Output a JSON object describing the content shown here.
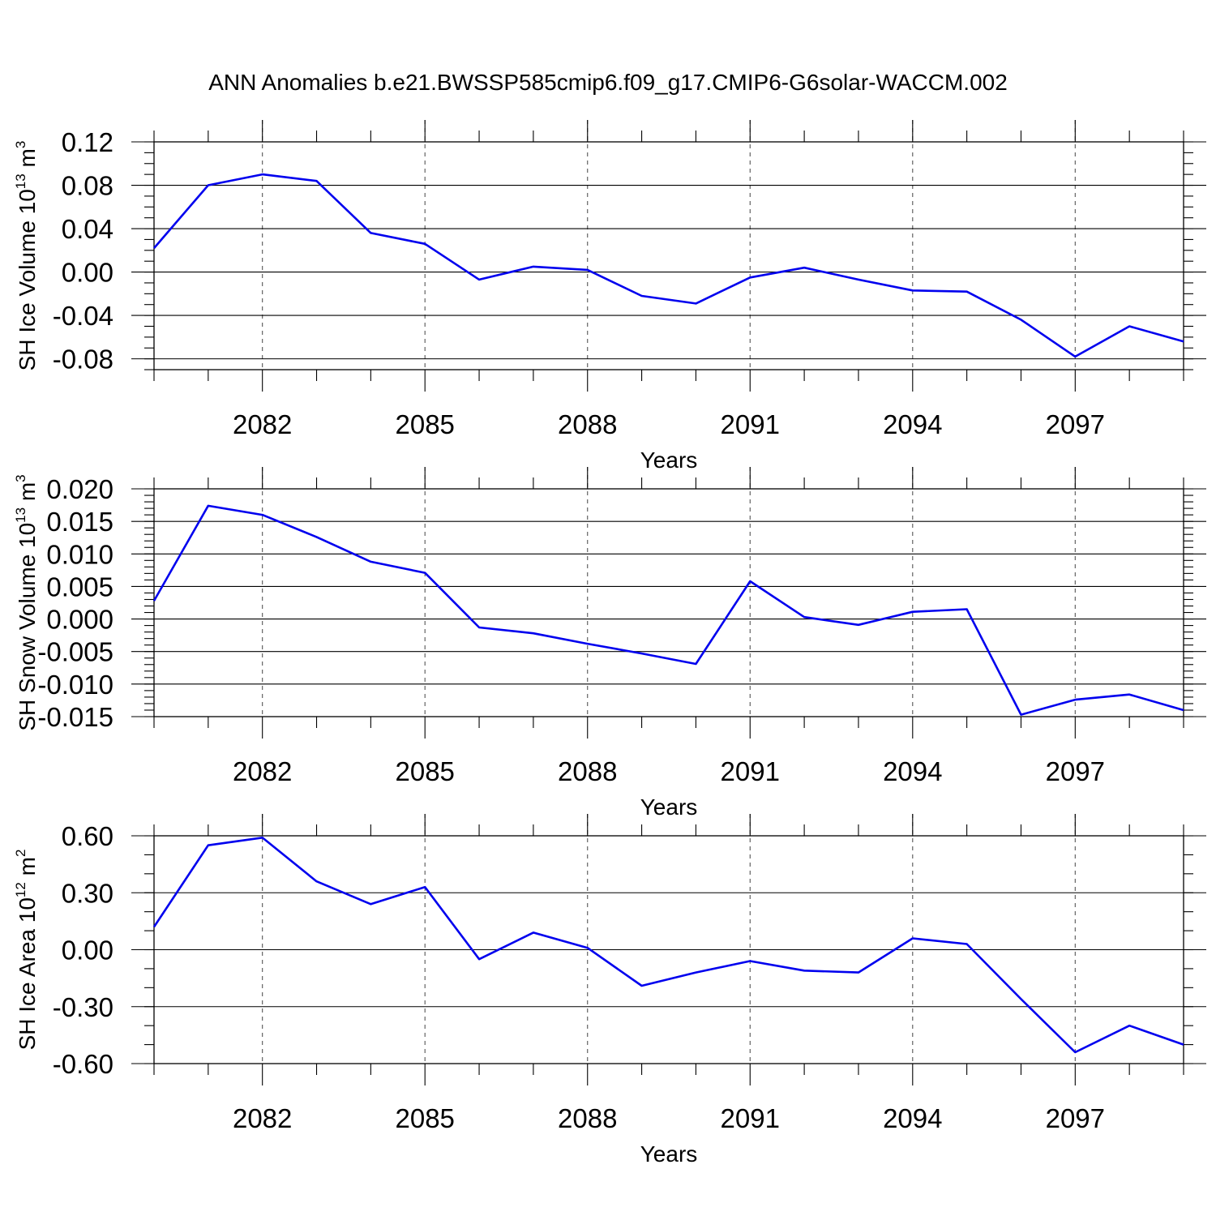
{
  "chart_data": {
    "type": "line",
    "title": "ANN Anomalies b.e21.BWSSP585cmip6.f09_g17.CMIP6-G6solar-WACCM.002",
    "x": [
      2080,
      2081,
      2082,
      2083,
      2084,
      2085,
      2086,
      2087,
      2088,
      2089,
      2090,
      2091,
      2092,
      2093,
      2094,
      2095,
      2096,
      2097,
      2098,
      2099
    ],
    "xlim": [
      2080,
      2099
    ],
    "xticks": [
      2082,
      2085,
      2088,
      2091,
      2094,
      2097
    ],
    "xlabel": "Years",
    "panels": [
      {
        "name": "ice-volume",
        "ylabel": {
          "main": "SH Ice Volume 10",
          "sup1": "13",
          "mid": " m",
          "sup2": "3"
        },
        "ylim": [
          -0.09,
          0.12
        ],
        "yticks": [
          0.12,
          0.08,
          0.04,
          0.0,
          -0.04,
          -0.08
        ],
        "ytick_labels": [
          "0.12",
          "0.08",
          "0.04",
          "0.00",
          "-0.04",
          "-0.08"
        ],
        "minor_step": 0.01,
        "values": [
          0.022,
          0.08,
          0.09,
          0.084,
          0.036,
          0.026,
          -0.007,
          0.005,
          0.002,
          -0.022,
          -0.029,
          -0.005,
          0.004,
          -0.007,
          -0.017,
          -0.018,
          -0.044,
          -0.078,
          -0.05,
          -0.064
        ]
      },
      {
        "name": "snow-volume",
        "ylabel": {
          "main": "SH Snow Volume 10",
          "sup1": "13",
          "mid": " m",
          "sup2": "3"
        },
        "ylim": [
          -0.015,
          0.02
        ],
        "yticks": [
          0.02,
          0.015,
          0.01,
          0.005,
          0.0,
          -0.005,
          -0.01,
          -0.015
        ],
        "ytick_labels": [
          "0.020",
          "0.015",
          "0.010",
          "0.005",
          "0.000",
          "-0.005",
          "-0.010",
          "-0.015"
        ],
        "minor_step": 0.001,
        "values": [
          0.0028,
          0.0174,
          0.016,
          0.0126,
          0.0088,
          0.0071,
          -0.0013,
          -0.0022,
          -0.0038,
          -0.0053,
          -0.0069,
          0.0058,
          0.0003,
          -0.0009,
          0.0011,
          0.0015,
          -0.0147,
          -0.0124,
          -0.0116,
          -0.014
        ]
      },
      {
        "name": "ice-area",
        "ylabel": {
          "main": "SH Ice Area 10",
          "sup1": "12",
          "mid": " m",
          "sup2": "2"
        },
        "ylim": [
          -0.6,
          0.6
        ],
        "yticks": [
          0.6,
          0.3,
          0.0,
          -0.3,
          -0.6
        ],
        "ytick_labels": [
          "0.60",
          "0.30",
          "0.00",
          "-0.30",
          "-0.60"
        ],
        "minor_step": 0.1,
        "values": [
          0.12,
          0.55,
          0.59,
          0.36,
          0.24,
          0.33,
          -0.05,
          0.09,
          0.01,
          -0.19,
          -0.12,
          -0.06,
          -0.11,
          -0.12,
          0.06,
          0.03,
          -0.26,
          -0.54,
          -0.4,
          -0.5
        ]
      }
    ]
  }
}
